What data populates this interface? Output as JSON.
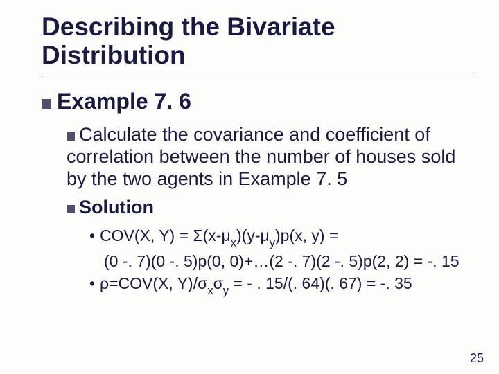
{
  "title_line1": "Describing the Bivariate",
  "title_line2": "Distribution",
  "example_label": "Example 7. 6",
  "calc_text": "Calculate the covariance and coefficient of correlation between the number of houses sold by the two agents in Example 7. 5",
  "solution_label": "Solution",
  "cov_line1_pre": "COV(X, Y) = Σ(x-μ",
  "cov_line1_subx": "x",
  "cov_line1_mid1": ")(y-μ",
  "cov_line1_suby": "y",
  "cov_line1_post": ")p(x, y) =",
  "cov_line2": "(0 -. 7)(0 -. 5)p(0, 0)+…(2 -. 7)(2 -. 5)p(2, 2) = -. 15",
  "rho_pre": "ρ=COV(X, Y)/σ",
  "rho_subx": "x",
  "rho_mid": "σ",
  "rho_suby": "y",
  "rho_post": " = - . 15/(. 64)(. 67) = -. 35",
  "slide_number": "25",
  "colors": {
    "text": "#1a1a40",
    "bullet": "#50506a",
    "background": "#fdfdfb"
  }
}
